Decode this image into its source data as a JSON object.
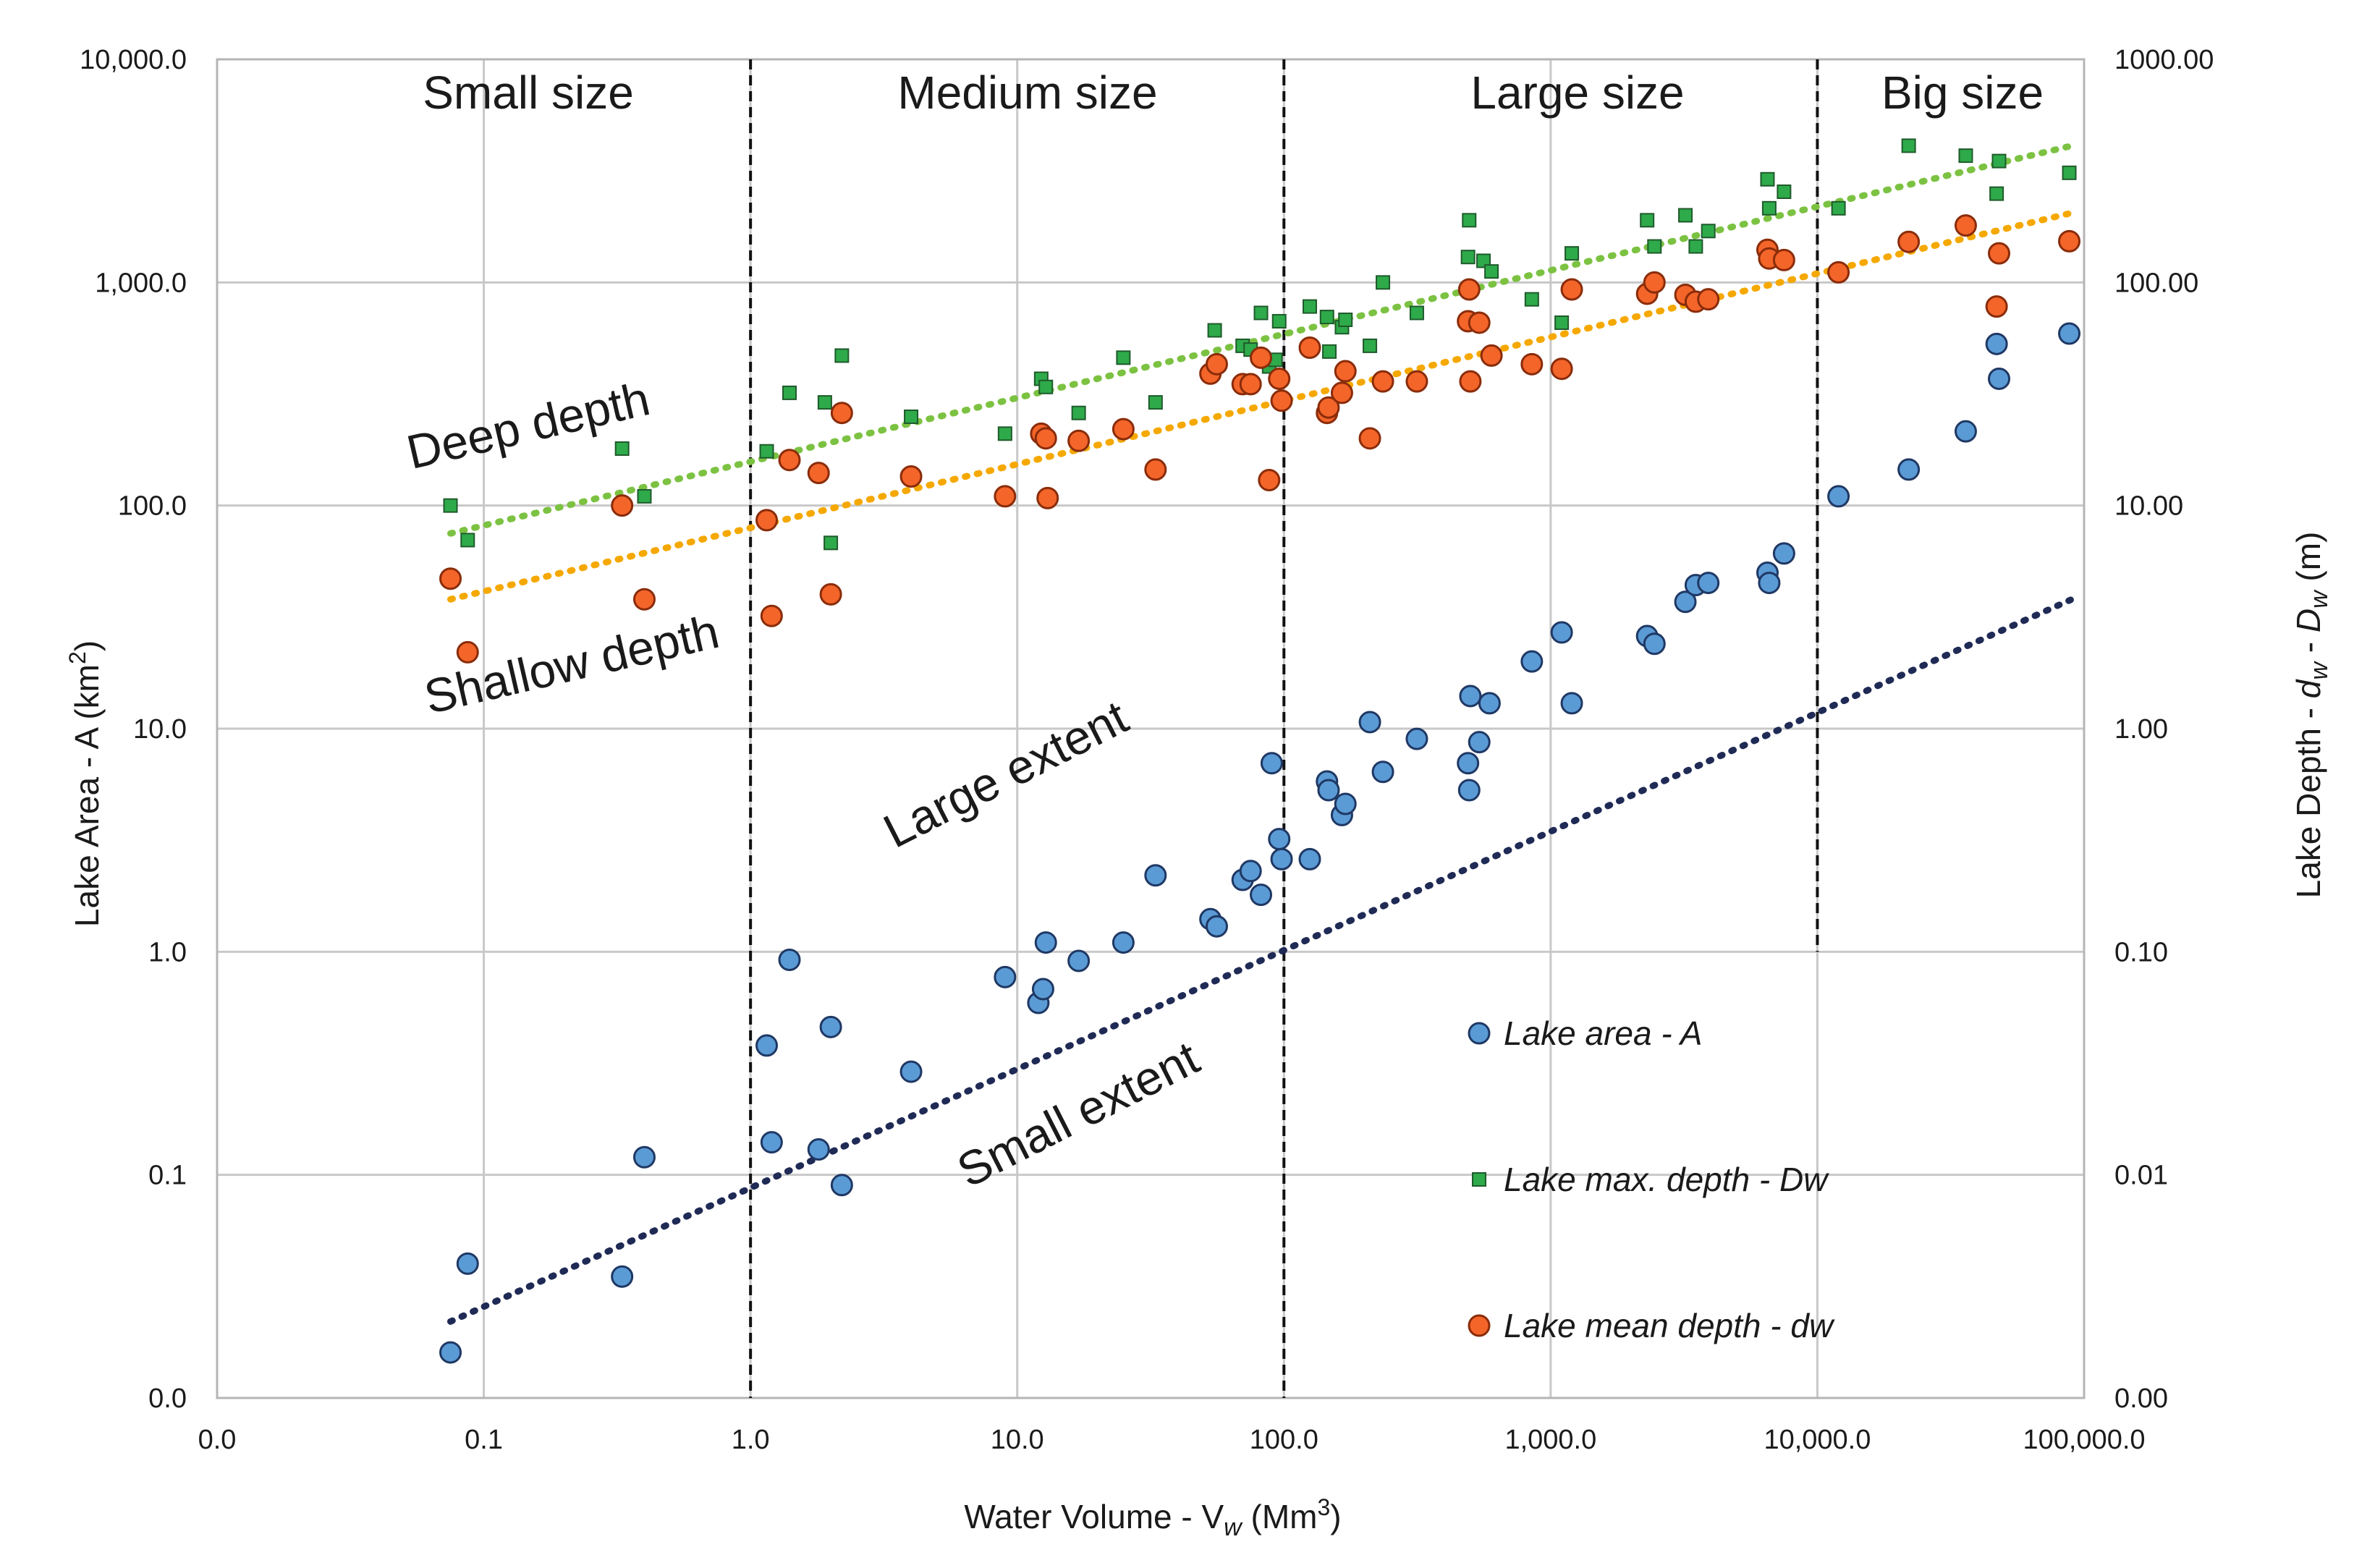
{
  "chart_data": {
    "type": "scatter",
    "x_scale": "log",
    "y_scale": "log",
    "xlabel": "Water Volume - V",
    "xlabel_sub": "w",
    "xlabel_unit_prefix": " (Mm",
    "xlabel_unit_sup": "3",
    "xlabel_unit_suffix": ")",
    "ylabel_left": "Lake Area - A (km",
    "ylabel_left_sup": "2",
    "ylabel_left_suffix": ")",
    "ylabel_right_prefix": "Lake  Depth  - ",
    "ylabel_right_d1": "d",
    "ylabel_right_d1_sub": "w",
    "ylabel_right_mid": " - ",
    "ylabel_right_d2": "D",
    "ylabel_right_d2_sub": "w",
    "ylabel_right_suffix": " (m)",
    "xlim": [
      0.01,
      100000
    ],
    "ylim_left": [
      0.01,
      10000
    ],
    "ylim_right": [
      0.001,
      1000
    ],
    "x_ticks": [
      {
        "value": 0.01,
        "label": "0.0"
      },
      {
        "value": 0.1,
        "label": "0.1"
      },
      {
        "value": 1,
        "label": "1.0"
      },
      {
        "value": 10,
        "label": "10.0"
      },
      {
        "value": 100,
        "label": "100.0"
      },
      {
        "value": 1000,
        "label": "1,000.0"
      },
      {
        "value": 10000,
        "label": "10,000.0"
      },
      {
        "value": 100000,
        "label": "100,000.0"
      }
    ],
    "y_left_ticks": [
      {
        "value": 0.01,
        "label": "0.0"
      },
      {
        "value": 0.1,
        "label": "0.1"
      },
      {
        "value": 1,
        "label": "1.0"
      },
      {
        "value": 10,
        "label": "10.0"
      },
      {
        "value": 100,
        "label": "100.0"
      },
      {
        "value": 1000,
        "label": "1,000.0"
      },
      {
        "value": 10000,
        "label": "10,000.0"
      }
    ],
    "y_right_ticks": [
      {
        "value": 0.001,
        "label": "0.00"
      },
      {
        "value": 0.01,
        "label": "0.01"
      },
      {
        "value": 0.1,
        "label": "0.10"
      },
      {
        "value": 1,
        "label": "1.00"
      },
      {
        "value": 10,
        "label": "10.00"
      },
      {
        "value": 100,
        "label": "100.00"
      },
      {
        "value": 1000,
        "label": "1000.00"
      }
    ],
    "grid": true,
    "size_classes": {
      "boundaries": [
        1,
        100,
        10000
      ],
      "labels": [
        {
          "label": "Small size",
          "x": 0.25
        },
        {
          "label": "Medium size",
          "x": 10
        },
        {
          "label": "Large size",
          "x": 1000
        },
        {
          "label": "Big size",
          "x": 25000
        }
      ]
    },
    "annotations": [
      {
        "text": "Deep depth",
        "x": 0.25,
        "y_left": 150,
        "rotation": -13
      },
      {
        "text": "Shallow depth",
        "x": 0.3,
        "y_left": 13,
        "rotation": -13
      },
      {
        "text": "Large extent",
        "x": 15,
        "y_left": 3.5,
        "rotation": -27
      },
      {
        "text": "Small extent",
        "x": 15,
        "y_left": 0.12,
        "rotation": -27
      }
    ],
    "legend": {
      "position": "lower-right",
      "entries": [
        {
          "label": "Lake area - A",
          "series": "area"
        },
        {
          "label": "Lake max. depth -  Dw",
          "series": "max_depth"
        },
        {
          "label": "Lake mean depth -  dw",
          "series": "mean_depth"
        }
      ]
    },
    "series": [
      {
        "name": "Lake area - A",
        "key": "area",
        "axis": "left",
        "marker": "circle",
        "color": "#5b9bd5",
        "edge": "#1f3864",
        "trend": {
          "color": "#1f2a55",
          "points": [
            [
              0.075,
              0.022
            ],
            [
              90000,
              38
            ]
          ]
        },
        "points": [
          [
            0.075,
            0.016
          ],
          [
            0.087,
            0.04
          ],
          [
            0.33,
            0.035
          ],
          [
            0.4,
            0.12
          ],
          [
            1.15,
            0.38
          ],
          [
            1.2,
            0.14
          ],
          [
            1.4,
            0.92
          ],
          [
            1.8,
            0.13
          ],
          [
            2.0,
            0.46
          ],
          [
            2.2,
            0.09
          ],
          [
            4,
            0.29
          ],
          [
            9,
            0.77
          ],
          [
            12,
            0.59
          ],
          [
            12.5,
            0.68
          ],
          [
            12.8,
            1.1
          ],
          [
            17,
            0.91
          ],
          [
            25,
            1.1
          ],
          [
            33,
            2.2
          ],
          [
            53,
            1.4
          ],
          [
            56,
            1.3
          ],
          [
            70,
            2.1
          ],
          [
            75,
            2.3
          ],
          [
            82,
            1.8
          ],
          [
            90,
            7.0
          ],
          [
            96,
            3.2
          ],
          [
            98,
            2.6
          ],
          [
            125,
            2.6
          ],
          [
            145,
            5.8
          ],
          [
            147,
            5.3
          ],
          [
            165,
            4.1
          ],
          [
            170,
            4.6
          ],
          [
            210,
            10.7
          ],
          [
            235,
            6.4
          ],
          [
            315,
            9.0
          ],
          [
            490,
            7.0
          ],
          [
            495,
            5.3
          ],
          [
            500,
            14.0
          ],
          [
            540,
            8.7
          ],
          [
            590,
            13.0
          ],
          [
            850,
            20.0
          ],
          [
            1100,
            27.0
          ],
          [
            1200,
            13.0
          ],
          [
            2300,
            26.0
          ],
          [
            2450,
            24.0
          ],
          [
            3200,
            37.0
          ],
          [
            3500,
            44.0
          ],
          [
            3900,
            45.0
          ],
          [
            6500,
            50.0
          ],
          [
            6600,
            45.0
          ],
          [
            7500,
            61.0
          ],
          [
            12000,
            110.0
          ],
          [
            22000,
            145.0
          ],
          [
            36000,
            215.0
          ],
          [
            47000,
            530.0
          ],
          [
            48000,
            370.0
          ],
          [
            88000,
            590.0
          ]
        ]
      },
      {
        "name": "Lake max. depth -  Dw",
        "key": "max_depth",
        "axis": "right",
        "marker": "square",
        "color": "#2eaa4a",
        "edge": "#1f5a2b",
        "trend": {
          "color": "#7cc242",
          "points": [
            [
              0.075,
              7.5
            ],
            [
              90000,
              410
            ]
          ]
        },
        "points": [
          [
            0.075,
            10.0
          ],
          [
            0.087,
            7.0
          ],
          [
            0.33,
            18.0
          ],
          [
            0.4,
            11.0
          ],
          [
            1.15,
            17.5
          ],
          [
            1.4,
            32.0
          ],
          [
            1.9,
            29.0
          ],
          [
            2.0,
            6.8
          ],
          [
            2.2,
            47.0
          ],
          [
            4,
            25.0
          ],
          [
            9,
            21.0
          ],
          [
            12.3,
            37.0
          ],
          [
            12.8,
            34.0
          ],
          [
            17,
            26.0
          ],
          [
            25,
            46.0
          ],
          [
            33,
            29.0
          ],
          [
            55,
            61.0
          ],
          [
            70,
            52.0
          ],
          [
            75,
            50.0
          ],
          [
            82,
            73.0
          ],
          [
            88,
            42.0
          ],
          [
            93,
            45.0
          ],
          [
            96,
            67.0
          ],
          [
            125,
            78.0
          ],
          [
            145,
            70.0
          ],
          [
            148,
            49.0
          ],
          [
            165,
            63.0
          ],
          [
            170,
            68.0
          ],
          [
            210,
            52.0
          ],
          [
            235,
            100.0
          ],
          [
            315,
            73.0
          ],
          [
            490,
            130.0
          ],
          [
            495,
            190.0
          ],
          [
            560,
            125.0
          ],
          [
            600,
            112.0
          ],
          [
            850,
            84.0
          ],
          [
            1100,
            66.0
          ],
          [
            1200,
            135.0
          ],
          [
            2300,
            190.0
          ],
          [
            2450,
            145.0
          ],
          [
            3200,
            200.0
          ],
          [
            3500,
            145.0
          ],
          [
            3900,
            170.0
          ],
          [
            6500,
            290.0
          ],
          [
            6600,
            215.0
          ],
          [
            7500,
            255.0
          ],
          [
            12000,
            215.0
          ],
          [
            22000,
            410.0
          ],
          [
            36000,
            370.0
          ],
          [
            47000,
            250.0
          ],
          [
            48000,
            350.0
          ],
          [
            88000,
            310.0
          ]
        ]
      },
      {
        "name": "Lake mean depth -  dw",
        "key": "mean_depth",
        "axis": "right",
        "marker": "circle",
        "color": "#f4652a",
        "edge": "#8a2c0a",
        "trend": {
          "color": "#f5a800",
          "points": [
            [
              0.075,
              3.8
            ],
            [
              90000,
              205
            ]
          ]
        },
        "points": [
          [
            0.075,
            4.7
          ],
          [
            0.087,
            2.2
          ],
          [
            0.33,
            10.0
          ],
          [
            0.4,
            3.8
          ],
          [
            1.15,
            8.6
          ],
          [
            1.2,
            3.2
          ],
          [
            1.4,
            16.0
          ],
          [
            1.8,
            14.0
          ],
          [
            2.0,
            4.0
          ],
          [
            2.2,
            26.0
          ],
          [
            4,
            13.5
          ],
          [
            9,
            11.0
          ],
          [
            12.3,
            21.0
          ],
          [
            12.8,
            20.0
          ],
          [
            13,
            10.8
          ],
          [
            17,
            19.5
          ],
          [
            25,
            22.0
          ],
          [
            33,
            14.5
          ],
          [
            53,
            39.0
          ],
          [
            56,
            43.0
          ],
          [
            70,
            35.0
          ],
          [
            75,
            35.0
          ],
          [
            82,
            46.0
          ],
          [
            88,
            13.0
          ],
          [
            96,
            37.0
          ],
          [
            98,
            29.5
          ],
          [
            125,
            51.0
          ],
          [
            145,
            26.0
          ],
          [
            147,
            27.5
          ],
          [
            165,
            32.0
          ],
          [
            170,
            40.0
          ],
          [
            210,
            20.0
          ],
          [
            235,
            36.0
          ],
          [
            315,
            36.0
          ],
          [
            490,
            67.0
          ],
          [
            495,
            93.0
          ],
          [
            500,
            36.0
          ],
          [
            540,
            66.0
          ],
          [
            600,
            47.0
          ],
          [
            850,
            43.0
          ],
          [
            1100,
            41.0
          ],
          [
            1200,
            93.0
          ],
          [
            2300,
            89.0
          ],
          [
            2450,
            100.0
          ],
          [
            3200,
            88.0
          ],
          [
            3500,
            82.0
          ],
          [
            3900,
            84.0
          ],
          [
            6500,
            140.0
          ],
          [
            6600,
            128.0
          ],
          [
            7500,
            126.0
          ],
          [
            12000,
            111.0
          ],
          [
            22000,
            152.0
          ],
          [
            36000,
            180.0
          ],
          [
            47000,
            78.0
          ],
          [
            48000,
            135.0
          ],
          [
            88000,
            153.0
          ]
        ]
      }
    ]
  }
}
